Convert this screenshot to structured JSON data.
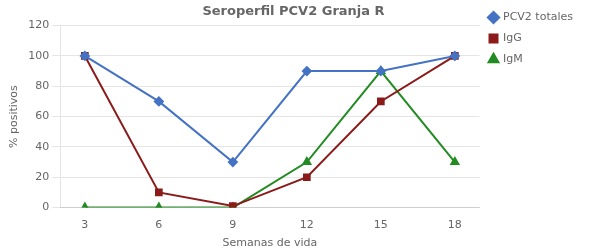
{
  "chart_data": {
    "type": "line",
    "title": "Seroperfil PCV2 Granja R",
    "x_label": "Semanas de vida",
    "y_label": "% positivos",
    "x": [
      3,
      6,
      9,
      12,
      15,
      18
    ],
    "series": [
      {
        "name": "PCV2 totales",
        "color": "#4472C4",
        "marker": "diamond",
        "values": [
          100,
          70,
          30,
          90,
          90,
          100
        ]
      },
      {
        "name": "IgG",
        "color": "#8B1A1A",
        "marker": "square",
        "values": [
          100,
          10,
          1,
          20,
          70,
          100
        ]
      },
      {
        "name": "IgM",
        "color": "#228B22",
        "marker": "triangle",
        "values": [
          0,
          0,
          0,
          30,
          90,
          30
        ]
      }
    ],
    "xlim": [
      2,
      19
    ],
    "xticks": [
      3,
      6,
      9,
      12,
      15,
      18
    ],
    "ylim": [
      0,
      120
    ],
    "yticks": [
      0,
      20,
      40,
      60,
      80,
      100,
      120
    ],
    "grid": "y",
    "legend": "right"
  }
}
